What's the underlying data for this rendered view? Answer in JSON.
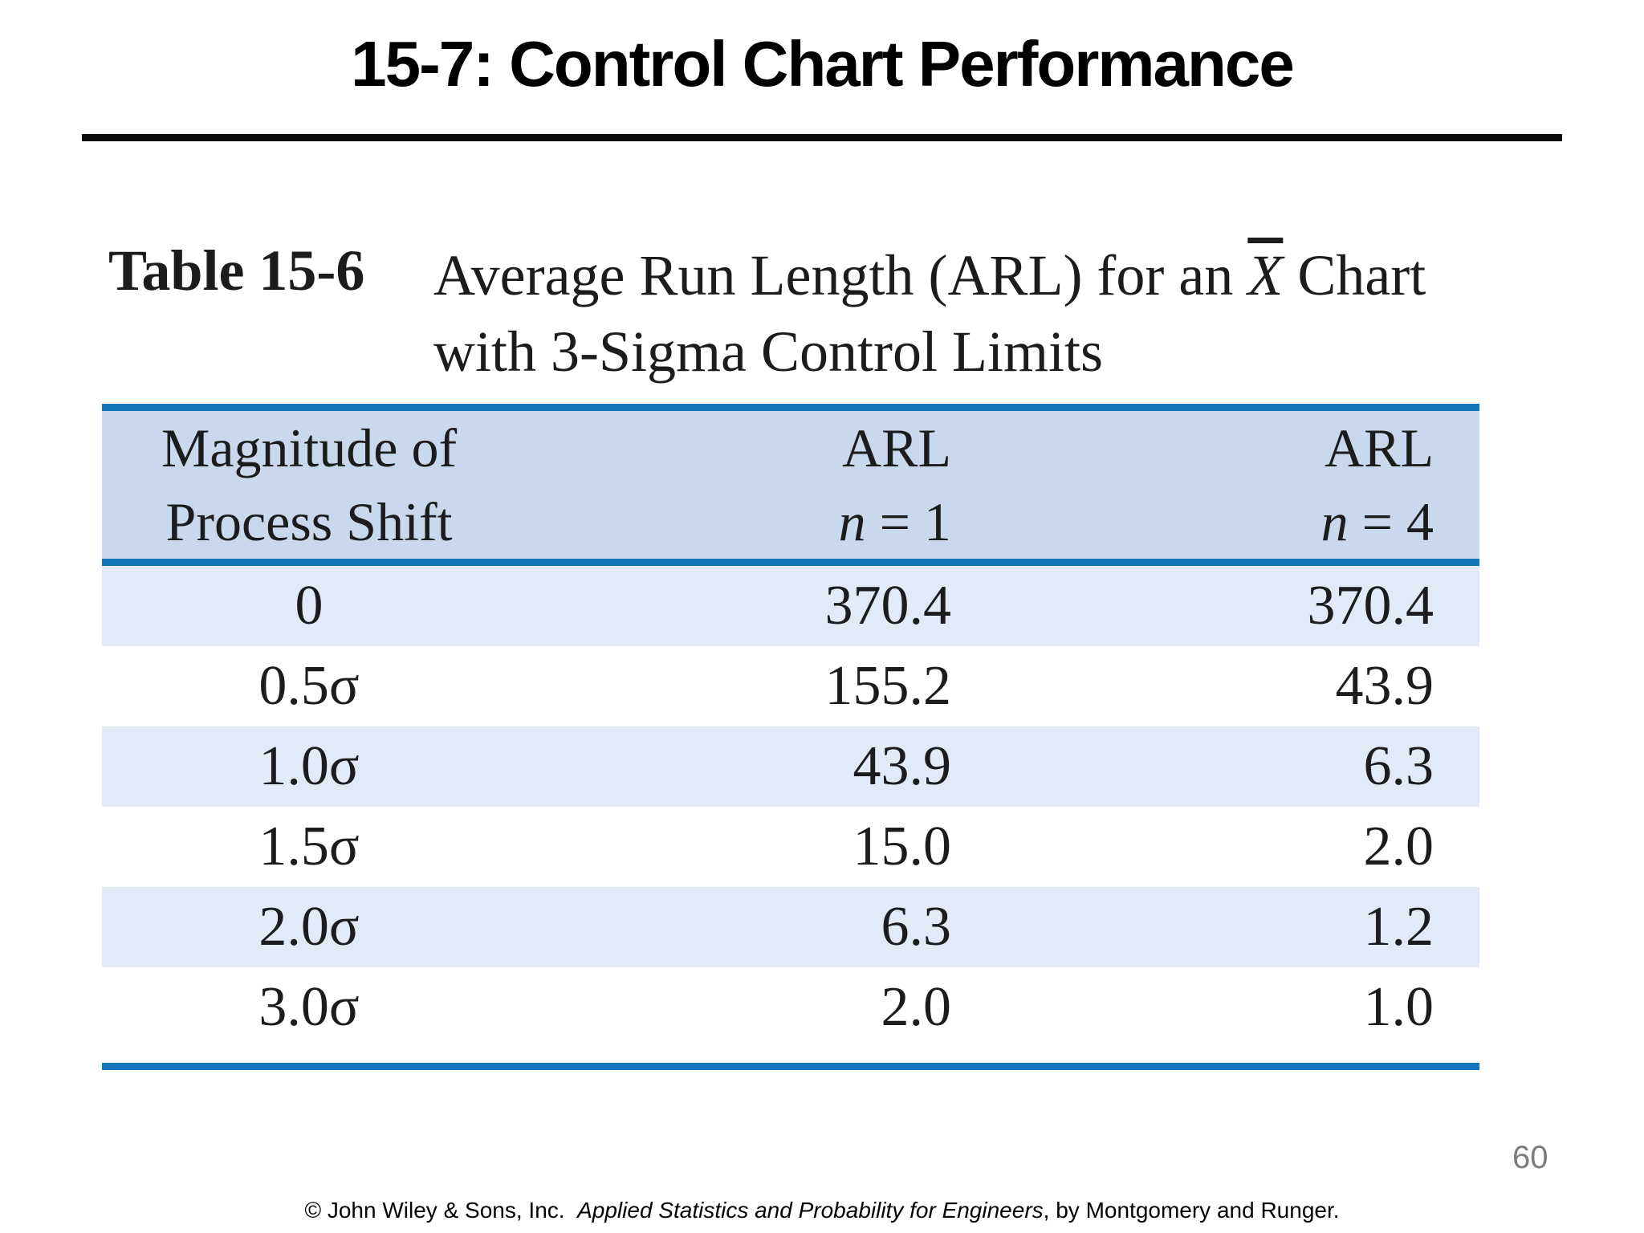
{
  "slide": {
    "title": "15-7: Control Chart Performance",
    "page_number": "60"
  },
  "caption": {
    "label": "Table 15-6",
    "line1_prefix": "Average Run Length (ARL) for an ",
    "xbar": "X",
    "line1_suffix": " Chart",
    "line2": "with 3-Sigma Control Limits"
  },
  "table": {
    "columns": [
      {
        "header_line1": "Magnitude of",
        "header_line2": "Process Shift"
      },
      {
        "header_line1": "ARL",
        "header_var": "n",
        "header_rest": " = 1"
      },
      {
        "header_line1": "ARL",
        "header_var": "n",
        "header_rest": " = 4"
      }
    ],
    "rows": [
      {
        "shift": "0",
        "arl_n1": "370.4",
        "arl_n4": "370.4"
      },
      {
        "shift": "0.5σ",
        "arl_n1": "155.2",
        "arl_n4": "43.9"
      },
      {
        "shift": "1.0σ",
        "arl_n1": "43.9",
        "arl_n4": "6.3"
      },
      {
        "shift": "1.5σ",
        "arl_n1": "15.0",
        "arl_n4": "2.0"
      },
      {
        "shift": "2.0σ",
        "arl_n1": "6.3",
        "arl_n4": "1.2"
      },
      {
        "shift": "3.0σ",
        "arl_n1": "2.0",
        "arl_n4": "1.0"
      }
    ]
  },
  "footer": {
    "prefix": "© John Wiley & Sons, Inc.  ",
    "book_title": "Applied Statistics and Probability for Engineers",
    "suffix": ", by Montgomery and Runger."
  },
  "colors": {
    "accent_blue": "#1577bb",
    "header_bg": "#c9d8ec",
    "row_stripe": "#e3eaf7",
    "title_rule_black": "#0c0c0c",
    "page_number_gray": "#7d7d7d"
  }
}
